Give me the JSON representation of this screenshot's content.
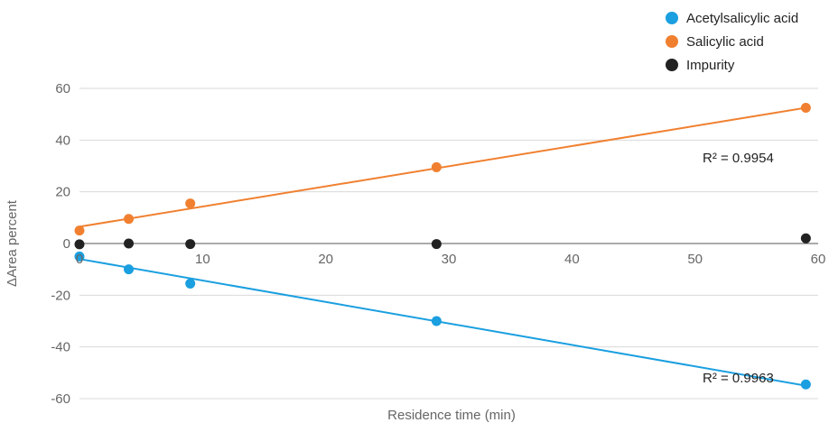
{
  "chart_data": {
    "type": "scatter",
    "xlabel": "Residence time (min)",
    "ylabel": "ΔArea percent",
    "xlim": [
      0,
      60
    ],
    "ylim": [
      -60,
      60
    ],
    "xticks": [
      0,
      10,
      20,
      30,
      40,
      50,
      60
    ],
    "yticks": [
      60,
      40,
      20,
      0,
      -20,
      -40,
      -60
    ],
    "ytick_labels": [
      "60",
      "40",
      "20",
      "0",
      "-20",
      "-40",
      "-60"
    ],
    "xtick_labels": [
      "0",
      "10",
      "20",
      "30",
      "40",
      "50",
      "60"
    ],
    "grid": "horizontal",
    "legend_position": "top-right",
    "series": [
      {
        "name": "Acetylsalicylic acid",
        "color": "#1a9fe0",
        "points": [
          [
            0,
            -5
          ],
          [
            4,
            -10
          ],
          [
            9,
            -15.5
          ],
          [
            29,
            -30
          ],
          [
            59,
            -54.5
          ]
        ],
        "trendline": {
          "from": [
            0,
            -6
          ],
          "to": [
            59,
            -55
          ]
        },
        "r2_label": "R² = 0.9963"
      },
      {
        "name": "Salicylic acid",
        "color": "#f08030",
        "points": [
          [
            0,
            5
          ],
          [
            4,
            9.5
          ],
          [
            9,
            15.5
          ],
          [
            29,
            29.5
          ],
          [
            59,
            52.5
          ]
        ],
        "trendline": {
          "from": [
            0,
            6.5
          ],
          "to": [
            59,
            52.5
          ]
        },
        "r2_label": "R² = 0.9954"
      },
      {
        "name": "Impurity",
        "color": "#222222",
        "points": [
          [
            0,
            -0.3
          ],
          [
            4,
            0
          ],
          [
            9,
            -0.2
          ],
          [
            29,
            -0.2
          ],
          [
            59,
            2
          ]
        ]
      }
    ],
    "annotations": [
      "R² = 0.9954",
      "R² = 0.9963"
    ]
  }
}
